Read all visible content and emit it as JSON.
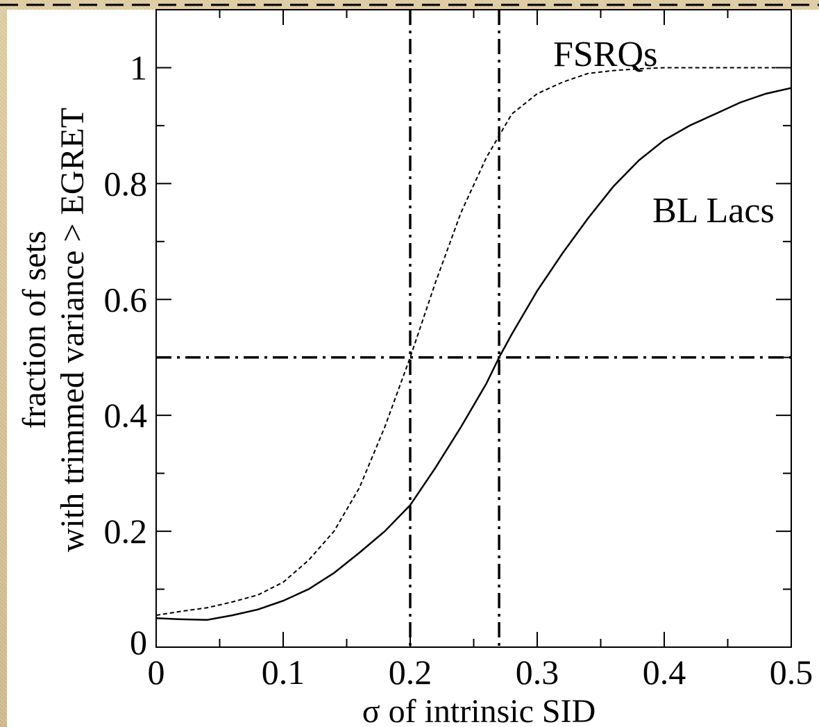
{
  "chart_data": {
    "type": "line",
    "xlabel": "σ  of intrinsic SID",
    "ylabel_line1": "fraction of sets",
    "ylabel_line2": "with trimmed variance > EGRET",
    "xlim": [
      0,
      0.5
    ],
    "ylim": [
      0,
      1.1
    ],
    "x_ticks": [
      0,
      0.1,
      0.2,
      0.3,
      0.4,
      0.5
    ],
    "x_tick_labels": [
      "0",
      "0.1",
      "0.2",
      "0.3",
      "0.4",
      "0.5"
    ],
    "y_ticks": [
      0,
      0.2,
      0.4,
      0.6,
      0.8,
      1
    ],
    "y_tick_labels": [
      "0",
      "0.2",
      "0.4",
      "0.6",
      "0.8",
      "1"
    ],
    "grid": false,
    "annotations": [
      {
        "text": "FSRQs",
        "series": "FSRQs"
      },
      {
        "text": "BL Lacs",
        "series": "BL Lacs"
      }
    ],
    "reference_lines": {
      "vertical": [
        0.2,
        0.27
      ],
      "horizontal": [
        0.5
      ],
      "style": "dash-dot"
    },
    "series": [
      {
        "name": "FSRQs",
        "style": "dashed",
        "x": [
          0,
          0.02,
          0.04,
          0.06,
          0.08,
          0.1,
          0.12,
          0.14,
          0.16,
          0.18,
          0.2,
          0.22,
          0.24,
          0.26,
          0.28,
          0.3,
          0.32,
          0.34,
          0.36,
          0.38,
          0.4,
          0.45,
          0.5
        ],
        "y": [
          0.055,
          0.062,
          0.068,
          0.078,
          0.09,
          0.112,
          0.15,
          0.2,
          0.275,
          0.38,
          0.5,
          0.63,
          0.75,
          0.845,
          0.92,
          0.955,
          0.975,
          0.99,
          0.995,
          0.998,
          1.0,
          1.0,
          1.0
        ]
      },
      {
        "name": "BL Lacs",
        "style": "solid",
        "x": [
          0,
          0.02,
          0.04,
          0.06,
          0.08,
          0.1,
          0.12,
          0.14,
          0.16,
          0.18,
          0.2,
          0.22,
          0.24,
          0.26,
          0.27,
          0.28,
          0.3,
          0.32,
          0.34,
          0.36,
          0.38,
          0.4,
          0.42,
          0.44,
          0.46,
          0.48,
          0.5
        ],
        "y": [
          0.05,
          0.048,
          0.047,
          0.055,
          0.065,
          0.08,
          0.1,
          0.128,
          0.163,
          0.2,
          0.245,
          0.31,
          0.38,
          0.455,
          0.5,
          0.54,
          0.615,
          0.68,
          0.74,
          0.795,
          0.84,
          0.875,
          0.9,
          0.92,
          0.94,
          0.955,
          0.965
        ]
      }
    ]
  }
}
